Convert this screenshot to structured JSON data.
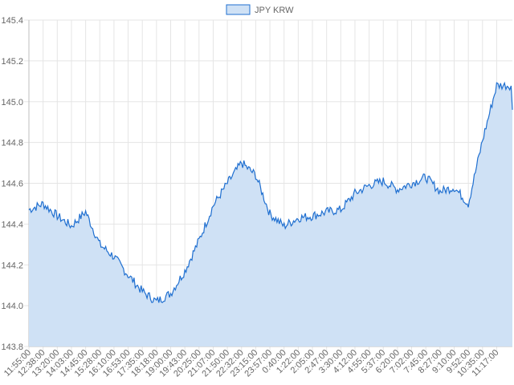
{
  "chart_data": {
    "type": "area",
    "legend": {
      "position": "top-center",
      "entries": [
        "JPY KRW"
      ]
    },
    "colors": {
      "line": "#1f6fd0",
      "fill": "#cfe1f5",
      "grid": "#e5e5e5"
    },
    "grid": true,
    "ylim": [
      143.8,
      145.4
    ],
    "y_ticks": [
      "145.4",
      "145.2",
      "145.0",
      "144.8",
      "144.6",
      "144.4",
      "144.2",
      "144.0",
      "143.8"
    ],
    "x_ticks": [
      "11:55:00",
      "12:38:00",
      "13:20:00",
      "14:03:00",
      "14:45:00",
      "15:28:00",
      "16:10:00",
      "16:53:00",
      "17:35:00",
      "18:18:00",
      "19:00:00",
      "19:43:00",
      "20:25:00",
      "21:07:00",
      "21:50:00",
      "22:32:00",
      "23:15:00",
      "23:57:00",
      "0:40:00",
      "1:22:00",
      "2:05:00",
      "2:47:00",
      "3:30:00",
      "4:12:00",
      "4:55:00",
      "5:37:00",
      "6:20:00",
      "7:02:00",
      "7:45:00",
      "8:27:00",
      "9:10:00",
      "9:52:00",
      "10:35:00",
      "11:17:00"
    ],
    "series": [
      {
        "name": "JPY KRW",
        "x": [
          "11:55:00",
          "12:38:00",
          "13:20:00",
          "14:03:00",
          "14:45:00",
          "15:28:00",
          "16:10:00",
          "16:53:00",
          "17:35:00",
          "18:18:00",
          "19:00:00",
          "19:43:00",
          "20:25:00",
          "21:07:00",
          "21:50:00",
          "22:32:00",
          "23:15:00",
          "23:57:00",
          "0:40:00",
          "1:22:00",
          "2:05:00",
          "2:47:00",
          "3:30:00",
          "4:12:00",
          "4:55:00",
          "5:37:00",
          "6:20:00",
          "7:02:00",
          "7:45:00",
          "8:27:00",
          "9:10:00",
          "9:52:00",
          "10:35:00",
          "11:17:00"
        ],
        "values": [
          144.47,
          144.5,
          144.44,
          144.39,
          144.46,
          144.3,
          144.24,
          144.15,
          144.07,
          144.02,
          144.06,
          144.17,
          144.32,
          144.49,
          144.6,
          144.7,
          144.64,
          144.45,
          144.39,
          144.43,
          144.44,
          144.46,
          144.47,
          144.55,
          144.59,
          144.61,
          144.57,
          144.6,
          144.63,
          144.56,
          144.58,
          144.5,
          144.81,
          145.08
        ]
      }
    ]
  }
}
